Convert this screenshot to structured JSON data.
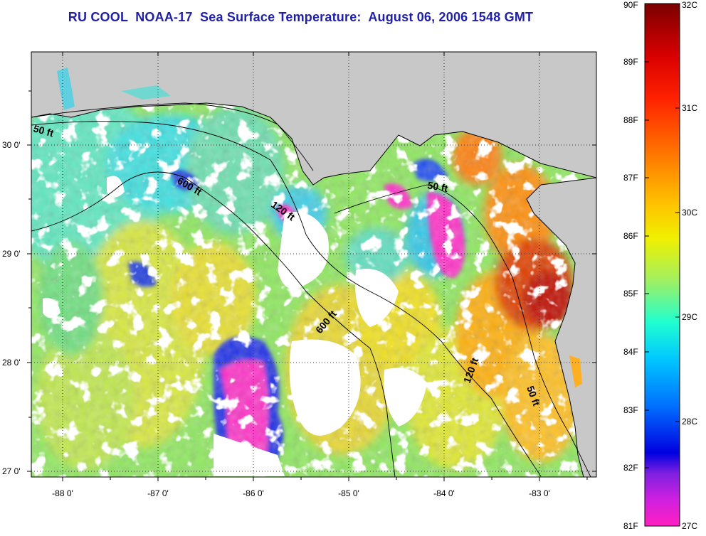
{
  "title": "RU COOL  NOAA-17  Sea Surface Temperature:  August 06, 2006 1548 GMT",
  "axes": {
    "x_ticks": [
      "-88 0'",
      "-87 0'",
      "-86 0'",
      "-85 0'",
      "-84 0'",
      "-83 0'"
    ],
    "y_ticks": [
      "30 0'",
      "29 0'",
      "28 0'",
      "27 0'"
    ],
    "lon_range": [
      -88.3,
      -82.4
    ],
    "lat_range": [
      26.95,
      30.85
    ]
  },
  "isobaths": [
    {
      "label": "50 ft",
      "where": "west"
    },
    {
      "label": "600 ft",
      "where": "north"
    },
    {
      "label": "120 ft",
      "where": "north"
    },
    {
      "label": "50 ft",
      "where": "big-bend"
    },
    {
      "label": "600 ft",
      "where": "south"
    },
    {
      "label": "120 ft",
      "where": "southeast"
    },
    {
      "label": "50 ft",
      "where": "southeast"
    }
  ],
  "colorbar": {
    "fahrenheit": [
      "90F",
      "89F",
      "88F",
      "87F",
      "86F",
      "85F",
      "84F",
      "83F",
      "82F",
      "81F"
    ],
    "celsius": [
      "32C",
      "31C",
      "30C",
      "29C",
      "28C",
      "27C"
    ]
  },
  "colors": {
    "land": "#c8c8c8",
    "title": "#1f1fa8",
    "cloud": "#ffffff"
  }
}
